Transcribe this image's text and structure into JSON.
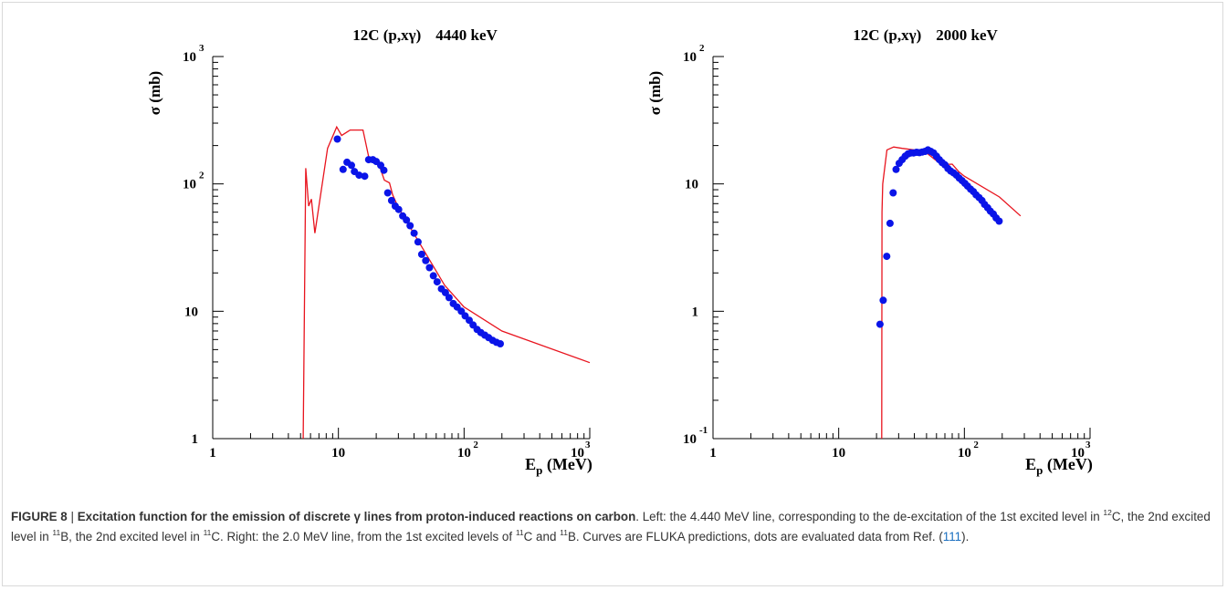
{
  "figure": {
    "caption": {
      "label": "FIGURE 8",
      "separator": " | ",
      "bold_title": "Excitation function for the emission of discrete γ lines from proton-induced reactions on carbon",
      "text_1": ". Left: the 4.440 MeV line, corresponding to the de-excitation of the 1st excited level in ",
      "sup_1": "12",
      "text_2": "C, the 2nd excited level in ",
      "sup_2": "11",
      "text_3": "B, the 2nd excited level in ",
      "sup_3": "11",
      "text_4": "C. Right: the 2.0 MeV line, from the 1st excited levels of ",
      "sup_4": "11",
      "text_5": "C and ",
      "sup_5": "11",
      "text_6": "B. Curves are FLUKA predictions, dots are evaluated data from Ref. (",
      "ref": "111",
      "text_7": ")."
    }
  },
  "colors": {
    "curve": "#e8141e",
    "dots": "#0a14e8",
    "axis": "#000000"
  },
  "chart_data": [
    {
      "type": "line",
      "title_main": "12C (p,xγ)",
      "title_energy": "4440 keV",
      "ylabel": "σ (mb)",
      "xlabel_main": "E",
      "xlabel_sub": "p",
      "xlabel_unit": " (MeV)",
      "x_scale": "log",
      "y_scale": "log",
      "xlim": [
        1,
        1000
      ],
      "ylim": [
        1,
        1000
      ],
      "x_ticks": [
        {
          "value": 1,
          "base": "1",
          "exp": ""
        },
        {
          "value": 10,
          "base": "10",
          "exp": ""
        },
        {
          "value": 100,
          "base": "10",
          "exp": "2"
        },
        {
          "value": 1000,
          "base": "10",
          "exp": "3"
        }
      ],
      "y_ticks": [
        {
          "value": 1,
          "base": "1",
          "exp": ""
        },
        {
          "value": 10,
          "base": "10",
          "exp": ""
        },
        {
          "value": 100,
          "base": "10",
          "exp": "2"
        },
        {
          "value": 1000,
          "base": "10",
          "exp": "3"
        }
      ],
      "series": [
        {
          "kind": "line",
          "x": [
            5.25,
            5.5,
            5.8,
            6.1,
            6.5,
            8.2,
            9.7,
            10.6,
            12.4,
            15.7,
            17.5,
            20.7,
            23.2,
            25.5,
            27,
            30,
            50,
            70,
            100,
            200,
            1000
          ],
          "y": [
            1,
            133,
            67,
            76,
            41,
            190,
            280,
            240,
            265,
            265,
            160,
            148,
            107,
            102,
            82,
            65,
            28,
            16,
            10.8,
            7.0,
            3.95
          ]
        },
        {
          "kind": "scatter",
          "x": [
            9.8,
            10.9,
            11.7,
            12.7,
            13.4,
            14.6,
            16.2,
            17.4,
            18.8,
            20,
            21.7,
            23,
            24.7,
            26.5,
            28.3,
            30.2,
            32.5,
            34.8,
            37.2,
            40,
            43,
            46,
            49.5,
            53,
            57,
            61,
            66,
            71,
            76,
            82,
            88,
            95,
            102,
            110,
            118,
            127,
            136,
            146,
            157,
            169,
            181,
            194
          ],
          "y": [
            225,
            130,
            148,
            140,
            125,
            117,
            115,
            155,
            155,
            150,
            140,
            128,
            85,
            74,
            67,
            63,
            56,
            52,
            47,
            41,
            35,
            28,
            25,
            22,
            19,
            17,
            15,
            14,
            12.8,
            11.5,
            10.8,
            10,
            9.2,
            8.5,
            7.8,
            7.2,
            6.8,
            6.5,
            6.2,
            5.9,
            5.7,
            5.55
          ]
        }
      ]
    },
    {
      "type": "line",
      "title_main": "12C (p,xγ)",
      "title_energy": "2000 keV",
      "ylabel": "σ (mb)",
      "xlabel_main": "E",
      "xlabel_sub": "p",
      "xlabel_unit": " (MeV)",
      "x_scale": "log",
      "y_scale": "log",
      "xlim": [
        1,
        1000
      ],
      "ylim": [
        0.1,
        100
      ],
      "x_ticks": [
        {
          "value": 1,
          "base": "1",
          "exp": ""
        },
        {
          "value": 10,
          "base": "10",
          "exp": ""
        },
        {
          "value": 100,
          "base": "10",
          "exp": "2"
        },
        {
          "value": 1000,
          "base": "10",
          "exp": "3"
        }
      ],
      "y_ticks": [
        {
          "value": 0.1,
          "base": "10",
          "exp": "-1"
        },
        {
          "value": 1,
          "base": "1",
          "exp": ""
        },
        {
          "value": 10,
          "base": "10",
          "exp": ""
        },
        {
          "value": 100,
          "base": "10",
          "exp": "2"
        }
      ],
      "series": [
        {
          "kind": "line",
          "x": [
            22,
            22.1,
            22.4,
            24.2,
            27.4,
            32,
            40,
            50,
            60,
            70,
            80,
            90,
            100,
            190,
            280
          ],
          "y": [
            0.1,
            6,
            10,
            18.5,
            19.5,
            19,
            18.5,
            17.5,
            15.2,
            14.2,
            14.3,
            12.5,
            11.5,
            7.9,
            5.6
          ]
        },
        {
          "kind": "scatter",
          "x": [
            21.3,
            22.6,
            24.1,
            25.6,
            27.1,
            28.6,
            30.3,
            32,
            33.8,
            35.6,
            37.5,
            39.5,
            41.7,
            43.9,
            46.2,
            48.7,
            51.3,
            54,
            56.9,
            60,
            63.2,
            66.6,
            70.1,
            73.9,
            77.8,
            82,
            86.4,
            91,
            95.9,
            101,
            106,
            112,
            118,
            124,
            131,
            138,
            145,
            153,
            161,
            170,
            179,
            189
          ],
          "y": [
            0.79,
            1.22,
            2.7,
            4.9,
            8.5,
            13,
            14.5,
            15.5,
            16.5,
            17.2,
            17.5,
            17.5,
            17.7,
            17.6,
            17.8,
            18,
            18.5,
            18,
            17.5,
            16.5,
            15.5,
            14.7,
            14.1,
            13.2,
            12.6,
            12.2,
            11.7,
            11.1,
            10.6,
            10.1,
            9.6,
            9.1,
            8.7,
            8.2,
            7.8,
            7.4,
            6.9,
            6.5,
            6.1,
            5.8,
            5.4,
            5.1
          ]
        }
      ]
    }
  ]
}
